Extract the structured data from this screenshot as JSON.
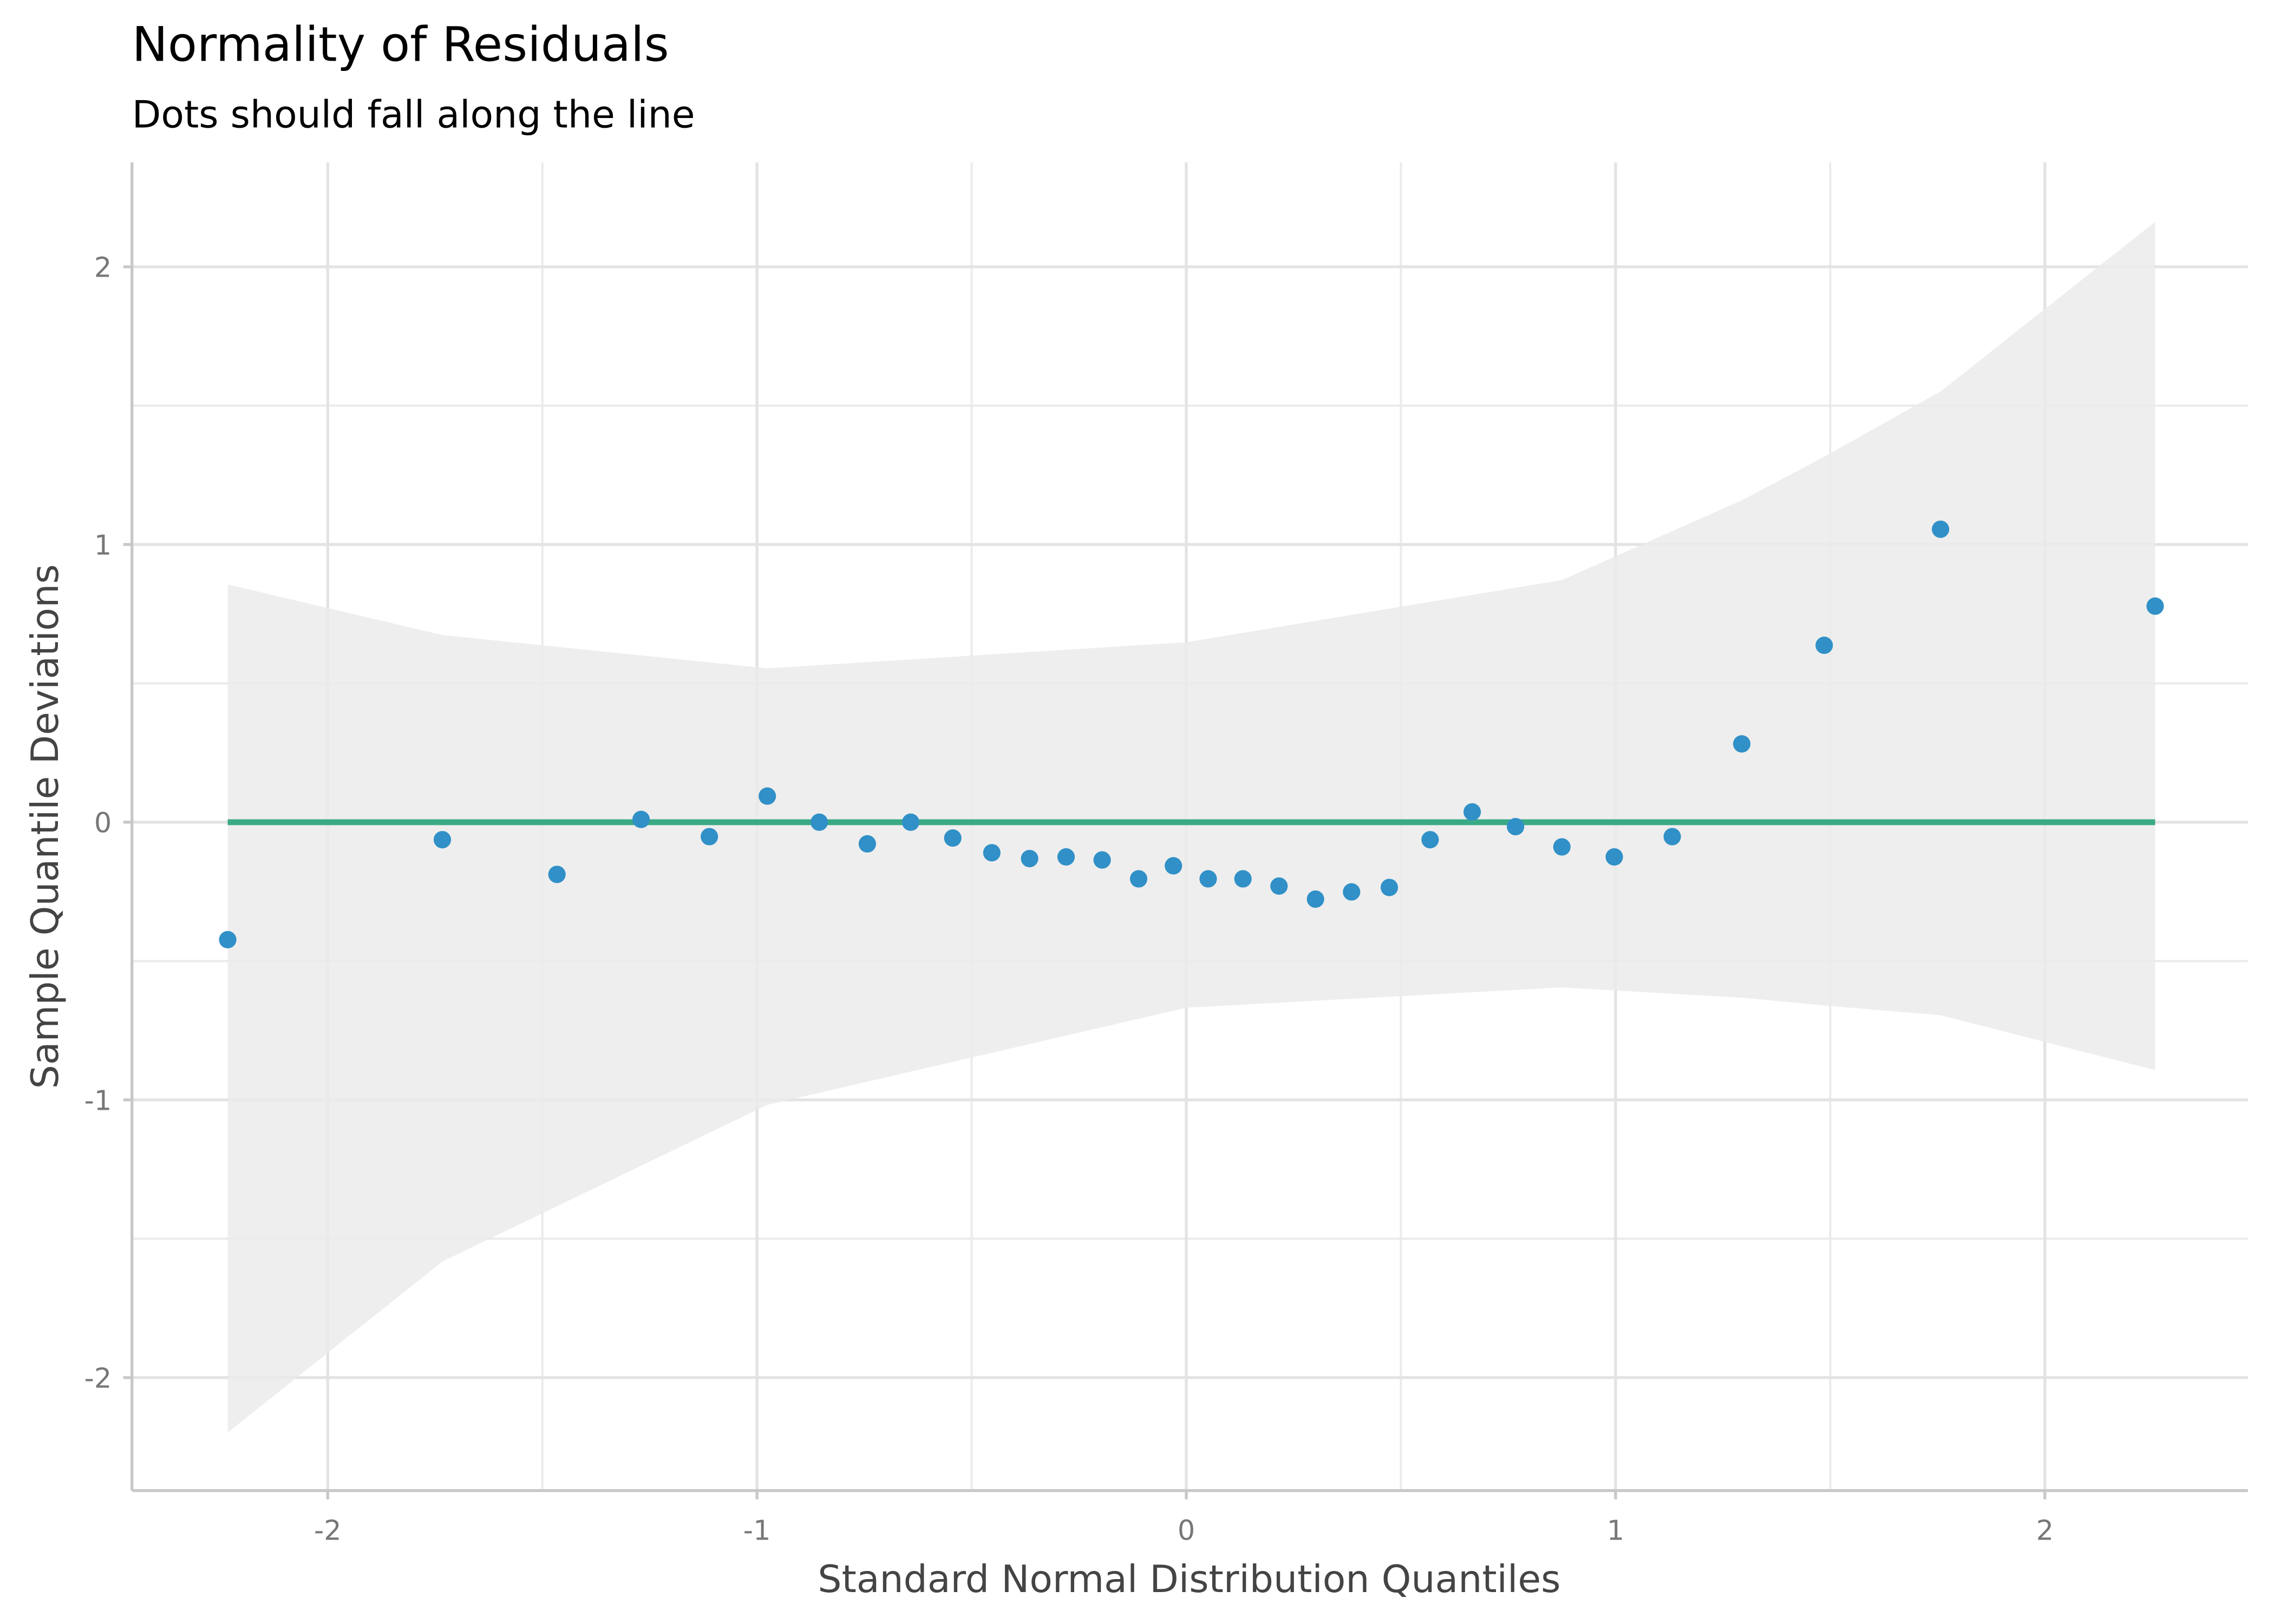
{
  "chart_data": {
    "type": "scatter",
    "title": "Normality of Residuals",
    "subtitle": "Dots should fall along the line",
    "x_label": "Standard Normal Distribution Quantiles",
    "y_label": "Sample Quantile Deviations",
    "xlim": [
      -2.456,
      2.473
    ],
    "ylim": [
      -2.407,
      2.376
    ],
    "xticks": [
      -2,
      -1,
      0,
      1,
      2
    ],
    "yticks": [
      -2,
      -1,
      0,
      1,
      2
    ],
    "x_minor_grid": [
      -1.5,
      -0.5,
      0.5,
      1.5
    ],
    "y_minor_grid": [
      -1.5,
      -0.5,
      0.5,
      1.5
    ],
    "grid": true,
    "ribbon": {
      "color": "#ebebeb",
      "x": [
        -2.233,
        -1.733,
        -0.976,
        0,
        0.875,
        1.294,
        1.486,
        1.757,
        2.257
      ],
      "upper": [
        0.856,
        0.674,
        0.554,
        0.648,
        0.872,
        1.159,
        1.316,
        1.551,
        2.162
      ],
      "lower": [
        -2.198,
        -1.582,
        -1.018,
        -0.668,
        -0.595,
        -0.632,
        -0.66,
        -0.695,
        -0.893
      ]
    },
    "reference_line": {
      "color": "#3aaa85",
      "x": [
        -2.233,
        2.257
      ],
      "y": [
        0,
        0
      ]
    },
    "series": [
      {
        "color": "#3090c7",
        "x": [
          -2.233,
          -1.733,
          -1.466,
          -1.27,
          -1.111,
          -0.976,
          -0.855,
          -0.743,
          -0.642,
          -0.544,
          -0.453,
          -0.365,
          -0.28,
          -0.196,
          -0.111,
          -0.03,
          0.051,
          0.132,
          0.216,
          0.301,
          0.385,
          0.473,
          0.568,
          0.666,
          0.767,
          0.875,
          0.997,
          1.132,
          1.294,
          1.486,
          1.757,
          2.257
        ],
        "values": [
          -0.423,
          -0.063,
          -0.188,
          0.01,
          -0.052,
          0.094,
          0.0,
          -0.078,
          0.0,
          -0.057,
          -0.11,
          -0.131,
          -0.125,
          -0.136,
          -0.204,
          -0.157,
          -0.204,
          -0.204,
          -0.23,
          -0.277,
          -0.251,
          -0.235,
          -0.063,
          0.037,
          -0.016,
          -0.089,
          -0.125,
          -0.052,
          0.282,
          0.637,
          1.055,
          0.778
        ]
      }
    ]
  }
}
